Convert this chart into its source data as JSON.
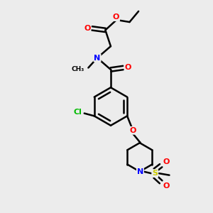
{
  "bg_color": "#ececec",
  "bond_color": "#000000",
  "bond_width": 1.8,
  "atom_colors": {
    "O": "#ff0000",
    "N": "#0000ff",
    "Cl": "#00bb00",
    "S": "#cccc00",
    "C": "#000000"
  },
  "font_size": 8.0,
  "fig_size": [
    3.0,
    3.0
  ],
  "dpi": 100
}
